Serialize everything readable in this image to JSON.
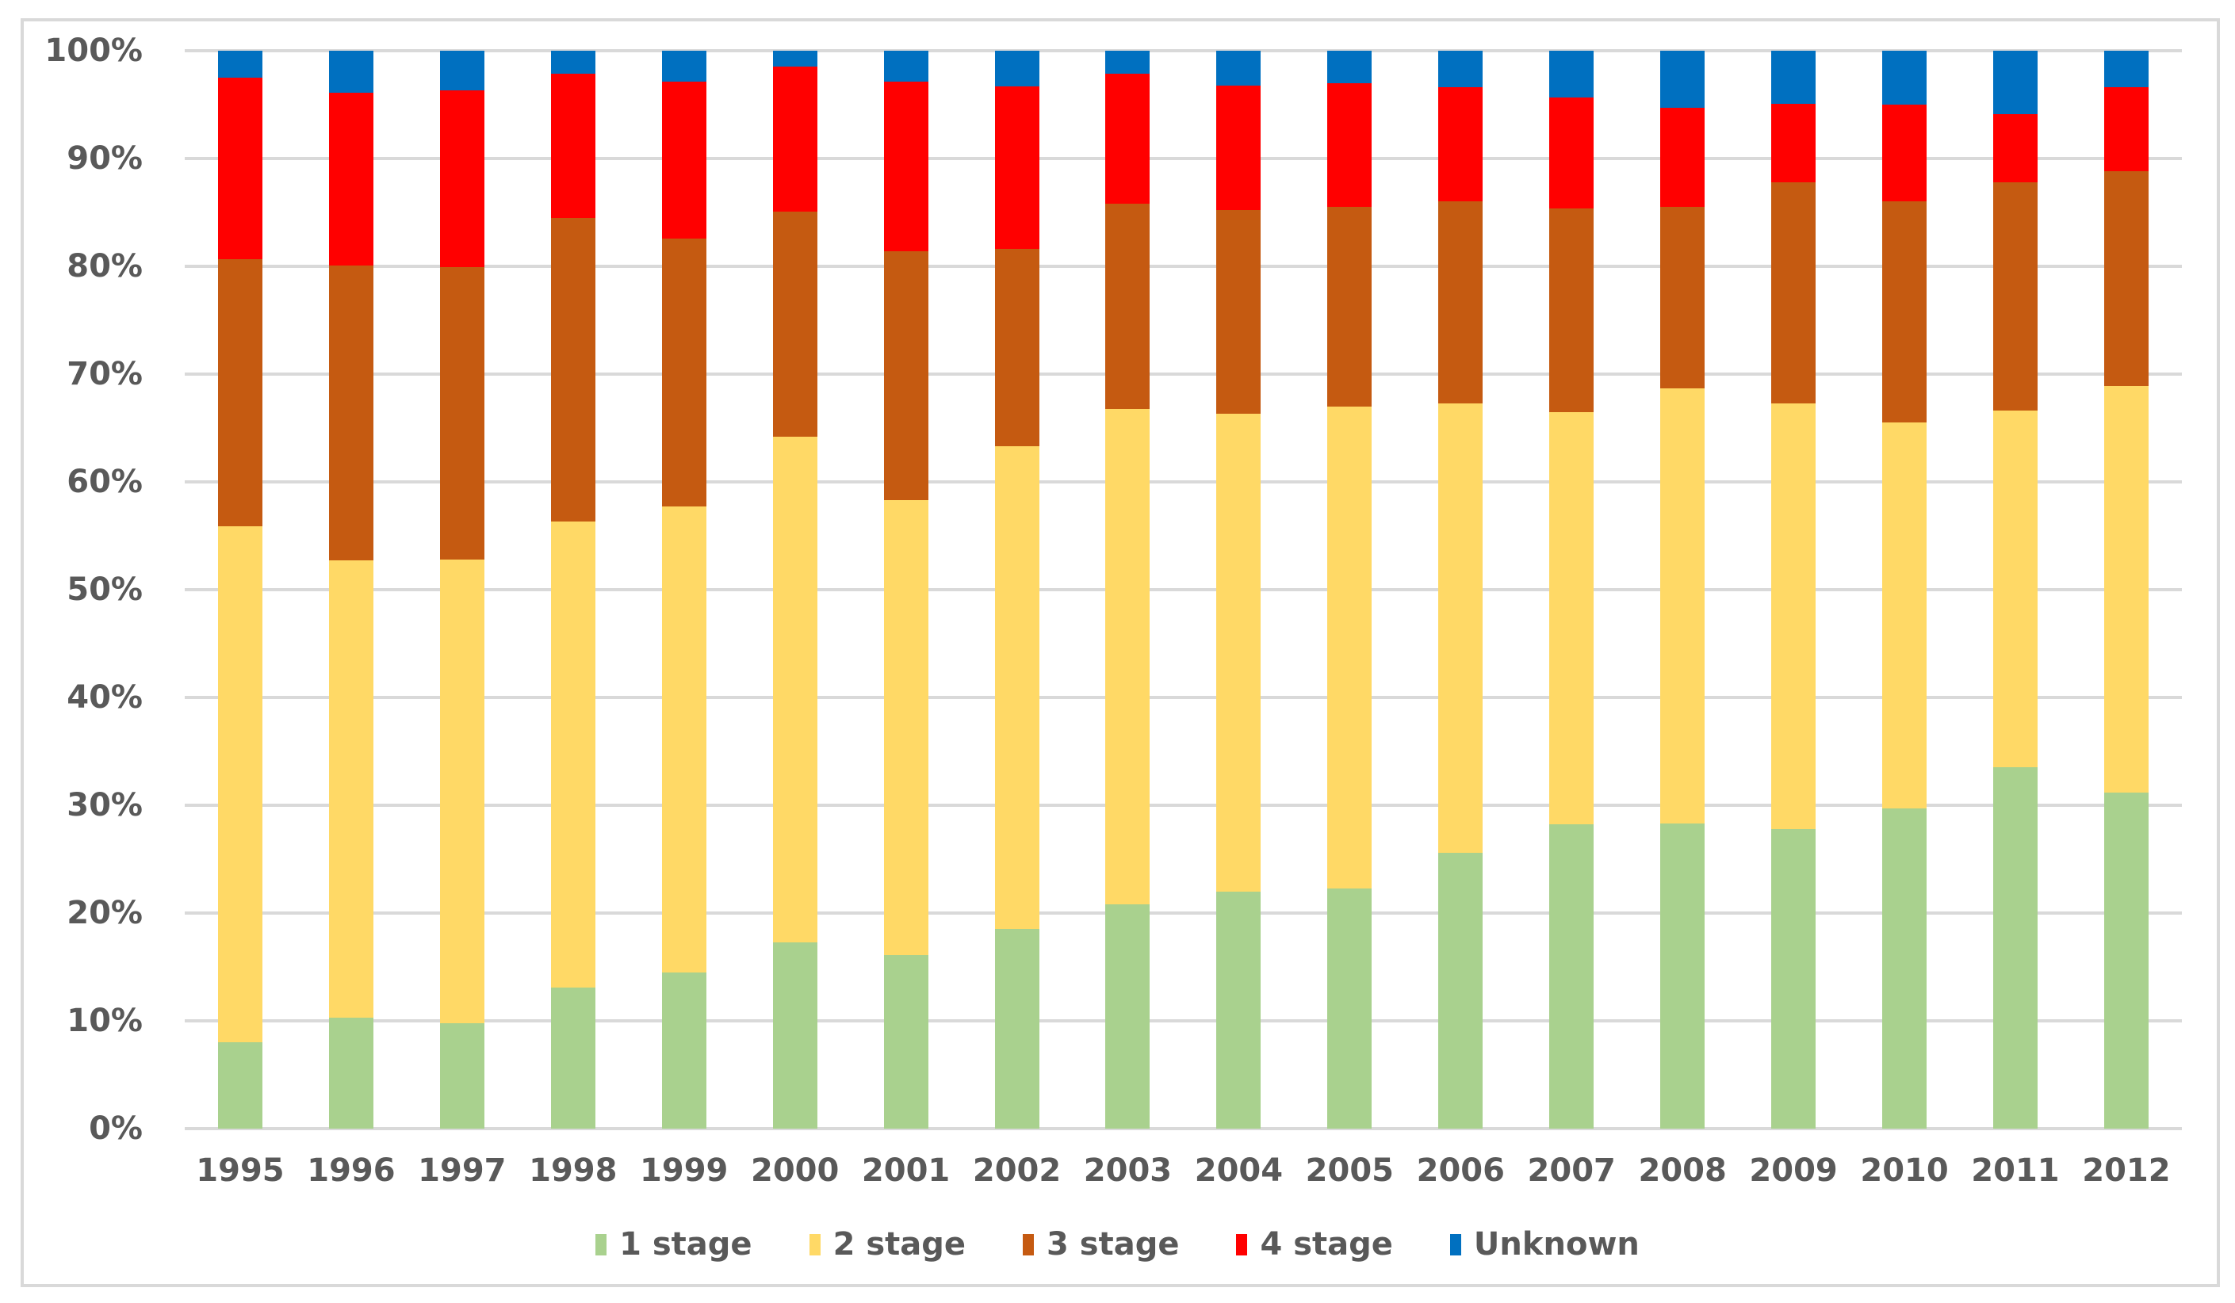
{
  "figure": {
    "background_color": "#FFFFFF",
    "frame_color": "#D9D9D9"
  },
  "styles": {
    "axis_text_color": "#595959",
    "gridline_color": "#D9D9D9"
  },
  "chart_data": {
    "type": "bar",
    "variant": "stacked-100-percent-column",
    "title": "",
    "xlabel": "",
    "ylabel": "",
    "grid": true,
    "ylim": [
      0,
      100
    ],
    "y_ticks": [
      "0%",
      "10%",
      "20%",
      "30%",
      "40%",
      "50%",
      "60%",
      "70%",
      "80%",
      "90%",
      "100%"
    ],
    "categories": [
      "1995",
      "1996",
      "1997",
      "1998",
      "1999",
      "2000",
      "2001",
      "2002",
      "2003",
      "2004",
      "2005",
      "2006",
      "2007",
      "2008",
      "2009",
      "2010",
      "2011",
      "2012"
    ],
    "series": [
      {
        "name": "1 stage",
        "color": "#A9D18E",
        "values": [
          8.0,
          10.3,
          9.8,
          13.1,
          14.5,
          17.3,
          16.1,
          18.5,
          20.8,
          22.0,
          22.3,
          25.6,
          28.2,
          28.3,
          27.8,
          29.7,
          33.5,
          31.2
        ]
      },
      {
        "name": "2 stage",
        "color": "#FFD966",
        "values": [
          47.9,
          42.4,
          43.0,
          43.2,
          43.2,
          46.9,
          42.2,
          44.8,
          46.0,
          44.3,
          44.7,
          41.7,
          38.3,
          40.4,
          39.5,
          35.8,
          33.1,
          37.7
        ]
      },
      {
        "name": "3 stage",
        "color": "#C55A11",
        "values": [
          24.8,
          27.4,
          27.1,
          28.2,
          24.9,
          20.9,
          23.1,
          18.3,
          19.0,
          18.9,
          18.5,
          18.7,
          18.9,
          16.8,
          20.5,
          20.5,
          21.2,
          19.9
        ]
      },
      {
        "name": "4 stage",
        "color": "#FF0000",
        "values": [
          16.8,
          16.0,
          16.4,
          13.4,
          14.5,
          13.4,
          15.7,
          15.1,
          12.1,
          11.6,
          11.5,
          10.6,
          10.3,
          9.2,
          7.3,
          9.0,
          6.3,
          7.8
        ]
      },
      {
        "name": "Unknown",
        "color": "#0070C0",
        "values": [
          2.5,
          3.9,
          3.7,
          2.1,
          2.9,
          1.5,
          2.9,
          3.3,
          2.1,
          3.2,
          3.0,
          3.4,
          4.3,
          5.3,
          4.9,
          5.0,
          5.9,
          3.4
        ]
      }
    ],
    "legend": {
      "position": "bottom",
      "labels": [
        "1 stage",
        "2 stage",
        "3 stage",
        "4 stage",
        "Unknown"
      ]
    }
  }
}
